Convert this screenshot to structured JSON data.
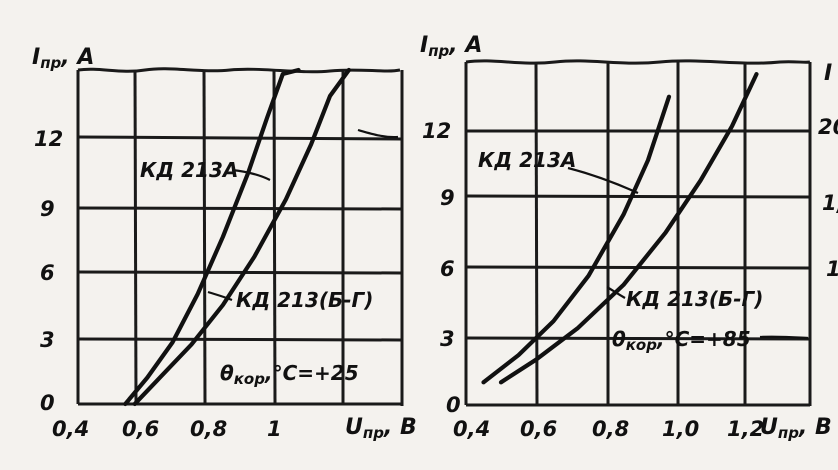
{
  "chart_data": [
    {
      "type": "line",
      "ylabel": "I",
      "ylabel_sub": "пр",
      "ylabel_unit": ", A",
      "xlabel": "U",
      "xlabel_sub": "пр",
      "xlabel_unit": ", B",
      "x_ticks": [
        "0,4",
        "0,6",
        "0,8",
        "1"
      ],
      "y_ticks": [
        "0",
        "3",
        "6",
        "9",
        "12"
      ],
      "xlim": [
        0.4,
        1.25
      ],
      "ylim": [
        0,
        15
      ],
      "condition": "θ",
      "condition_sub": "кор",
      "condition_rest": ",°C=+25",
      "grid": true,
      "series": [
        {
          "name": "КД 213А",
          "x": [
            0.55,
            0.62,
            0.7,
            0.78,
            0.86,
            0.94,
            1.0,
            1.05,
            1.1
          ],
          "y": [
            0,
            1.2,
            2.8,
            5,
            7.6,
            10.5,
            13,
            15,
            17
          ]
        },
        {
          "name": "КД 213(Б-Г)",
          "x": [
            0.58,
            0.66,
            0.76,
            0.86,
            0.96,
            1.06,
            1.14,
            1.2,
            1.26
          ],
          "y": [
            0,
            1.2,
            2.7,
            4.5,
            6.7,
            9.3,
            11.8,
            14,
            16
          ]
        }
      ]
    },
    {
      "type": "line",
      "ylabel": "I",
      "ylabel_sub": "пр",
      "ylabel_unit": ", A",
      "xlabel": "U",
      "xlabel_sub": "пр",
      "xlabel_unit": ", B",
      "x_ticks": [
        "0,4",
        "0,6",
        "0,8",
        "1,0",
        "1,2"
      ],
      "y_ticks": [
        "0",
        "3",
        "6",
        "9",
        "12"
      ],
      "xlim": [
        0.4,
        1.3
      ],
      "ylim": [
        0,
        15
      ],
      "condition": "θ",
      "condition_sub": "кор",
      "condition_rest": ",°C=+85",
      "grid": true,
      "series": [
        {
          "name": "КД 213А",
          "x": [
            0.45,
            0.55,
            0.65,
            0.75,
            0.85,
            0.92,
            0.98
          ],
          "y": [
            1,
            2.2,
            3.7,
            5.7,
            8.4,
            10.8,
            13.6
          ]
        },
        {
          "name": "КД 213(Б-Г)",
          "x": [
            0.5,
            0.6,
            0.72,
            0.85,
            0.97,
            1.07,
            1.16,
            1.23
          ],
          "y": [
            1,
            2,
            3.4,
            5.3,
            7.6,
            9.9,
            12.3,
            14.6
          ]
        }
      ]
    }
  ],
  "right_edge": {
    "label": "I",
    "ticks": [
      "20",
      "1,",
      "1"
    ]
  }
}
